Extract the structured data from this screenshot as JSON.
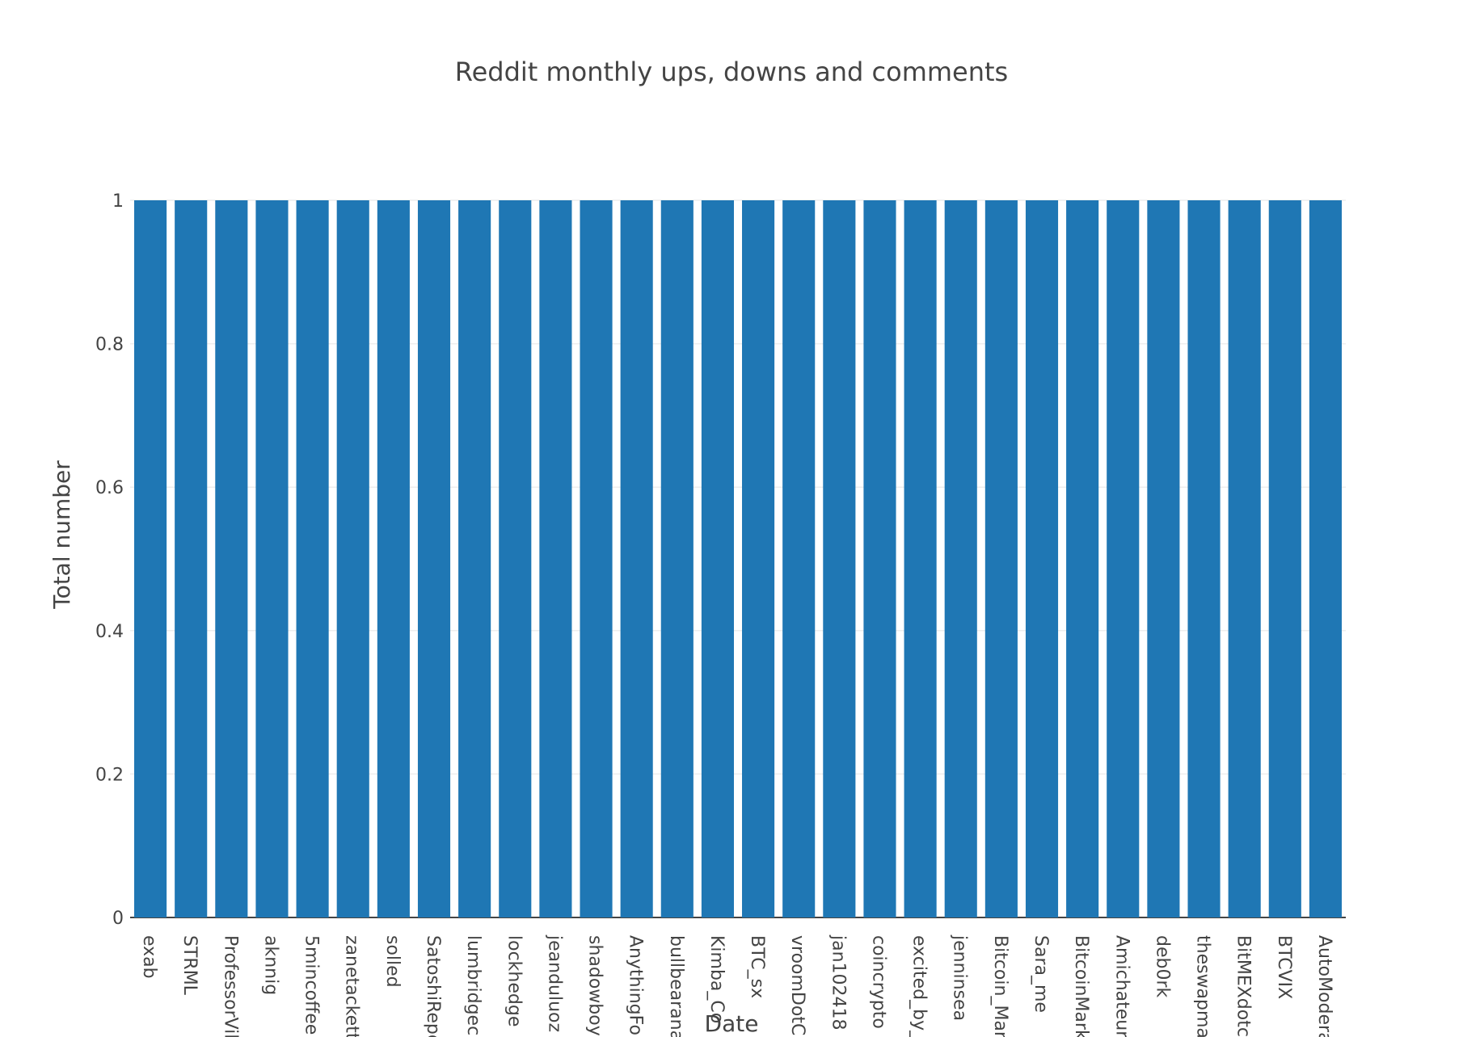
{
  "chart_data": {
    "type": "bar",
    "title": "Reddit monthly ups, downs and comments",
    "xlabel": "Date",
    "ylabel": "Total number",
    "ylim": [
      0,
      1
    ],
    "yticks": [
      "0",
      "0.2",
      "0.4",
      "0.6",
      "0.8",
      "1"
    ],
    "ytick_values": [
      0,
      0.2,
      0.4,
      0.6,
      0.8,
      1
    ],
    "grid": true,
    "bar_color": "#1f77b4",
    "categories": [
      "exab",
      "STRML",
      "ProfessorVil",
      "aknnig",
      "5mincoffee",
      "zanetackett",
      "solled",
      "SatoshiRepo",
      "lumbridgeci",
      "lockhedge",
      "jeanduluoz",
      "shadowboya",
      "AnythingFo",
      "bullbearana",
      "Kimba_Co",
      "BTC_sx",
      "vroomDotC",
      "jan102418",
      "coincrypto",
      "excited_by_",
      "jenninsea",
      "Bitcoin_Mar",
      "Sara_me",
      "BitcoinMark",
      "Amichateur",
      "deb0rk",
      "theswapma",
      "BitMEXdotc",
      "BTCVIX",
      "AutoModera"
    ],
    "values": [
      1,
      1,
      1,
      1,
      1,
      1,
      1,
      1,
      1,
      1,
      1,
      1,
      1,
      1,
      1,
      1,
      1,
      1,
      1,
      1,
      1,
      1,
      1,
      1,
      1,
      1,
      1,
      1,
      1,
      1
    ]
  }
}
